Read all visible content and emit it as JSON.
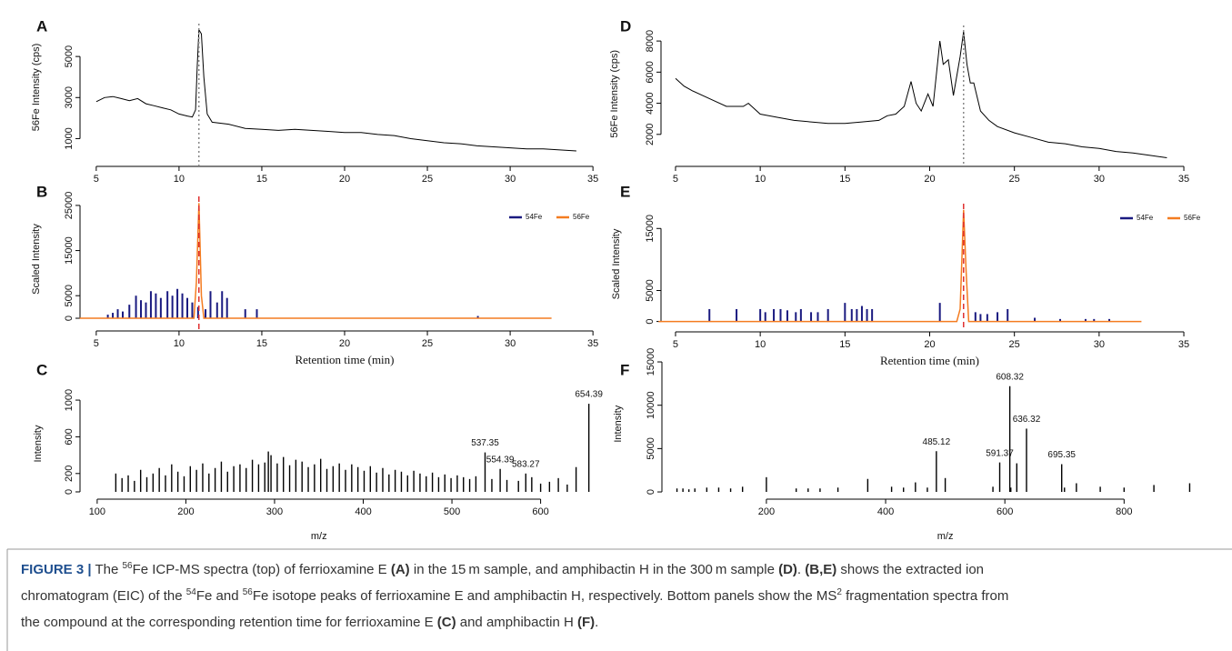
{
  "chart_data": [
    {
      "type": "line",
      "panel": "A",
      "ylabel": "56Fe  Intensity (cps)",
      "color": "#000000",
      "xlim": [
        3.8,
        36.2
      ],
      "ylim": [
        400,
        6600
      ],
      "xticks": [
        5,
        10,
        15,
        20,
        25,
        30,
        35
      ],
      "yticks": [
        1000,
        3000,
        5000
      ],
      "x": [
        5,
        5.5,
        6,
        6.5,
        7,
        7.5,
        8,
        8.5,
        9,
        9.5,
        10,
        10.5,
        10.8,
        11,
        11.1,
        11.2,
        11.35,
        11.5,
        11.7,
        12,
        13,
        14,
        15,
        16,
        17,
        18,
        19,
        20,
        21,
        22,
        23,
        24,
        25,
        26,
        27,
        28,
        29,
        30,
        31,
        32,
        33,
        34
      ],
      "values": [
        2800,
        3000,
        3050,
        2950,
        2850,
        2950,
        2700,
        2600,
        2500,
        2400,
        2200,
        2100,
        2050,
        2400,
        4500,
        6300,
        6100,
        4000,
        2200,
        1800,
        1700,
        1500,
        1450,
        1400,
        1450,
        1400,
        1350,
        1300,
        1300,
        1200,
        1150,
        1000,
        900,
        800,
        750,
        650,
        600,
        550,
        500,
        500,
        450,
        400
      ],
      "marker_x": 11.2,
      "marker_color": "#888888",
      "marker_dash": "2,3"
    },
    {
      "type": "line",
      "panel": "B",
      "ylabel": "Scaled Intensity",
      "xlabel": "Retention time (min)",
      "xlim": [
        3.8,
        36.2
      ],
      "ylim": [
        -800,
        27000
      ],
      "xticks": [
        5,
        10,
        15,
        20,
        25,
        30,
        35
      ],
      "yticks": [
        0,
        5000,
        15000,
        25000
      ],
      "legend": "top-right",
      "series": [
        {
          "name": "54Fe",
          "color": "#1a1a80",
          "kind": "spikes",
          "x": [
            5.7,
            6,
            6.3,
            6.6,
            7,
            7.4,
            7.7,
            8,
            8.3,
            8.6,
            8.9,
            9.3,
            9.6,
            9.9,
            10.2,
            10.5,
            10.8,
            11.15,
            11.6,
            11.9,
            12.3,
            12.6,
            12.9,
            14,
            14.7,
            28.05
          ],
          "values": [
            800,
            1200,
            2000,
            1500,
            3000,
            5000,
            4000,
            3500,
            6000,
            5500,
            4500,
            6000,
            5000,
            6500,
            5500,
            4500,
            3500,
            2500,
            2000,
            6000,
            3500,
            6000,
            4500,
            2000,
            2000,
            500
          ]
        },
        {
          "name": "56Fe",
          "color": "#f47c20",
          "kind": "line",
          "x": [
            4,
            10.9,
            11.05,
            11.2,
            11.35,
            11.5,
            32.5
          ],
          "values": [
            0,
            0,
            8000,
            25500,
            5000,
            0,
            0
          ]
        }
      ],
      "marker_x": 11.2,
      "marker_color": "#e03030",
      "marker_dash": "6,4"
    },
    {
      "type": "spectrum",
      "panel": "C",
      "ylabel": "Intensity",
      "xlabel": "m/z",
      "color": "#000000",
      "xlim": [
        95,
        665
      ],
      "ylim": [
        -20,
        1070
      ],
      "xticks": [
        100,
        200,
        300,
        400,
        500,
        600
      ],
      "yticks": [
        0,
        200,
        600,
        1000
      ],
      "x": [
        121,
        128,
        135,
        142,
        149,
        156,
        163,
        170,
        177,
        184,
        191,
        198,
        205,
        212,
        219,
        226,
        233,
        240,
        247,
        254,
        261,
        268,
        275,
        282,
        289,
        293,
        296,
        303,
        310,
        317,
        324,
        331,
        338,
        345,
        352,
        359,
        366,
        373,
        380,
        387,
        394,
        401,
        408,
        415,
        422,
        429,
        436,
        443,
        450,
        457,
        464,
        471,
        478,
        485,
        492,
        499,
        506,
        513,
        520,
        527,
        545,
        562,
        575,
        590,
        600,
        610,
        620,
        630,
        640
      ],
      "values": [
        200,
        150,
        180,
        120,
        240,
        160,
        200,
        260,
        180,
        300,
        220,
        170,
        280,
        240,
        310,
        200,
        260,
        330,
        220,
        280,
        300,
        260,
        350,
        300,
        320,
        440,
        400,
        310,
        380,
        290,
        350,
        330,
        270,
        300,
        360,
        250,
        280,
        310,
        240,
        300,
        270,
        230,
        280,
        210,
        260,
        190,
        240,
        220,
        180,
        230,
        200,
        170,
        210,
        160,
        190,
        150,
        180,
        160,
        140,
        170,
        140,
        130,
        120,
        160,
        90,
        110,
        150,
        80,
        270
      ],
      "labeled_x": [
        537.35,
        554.39,
        583.27,
        654.39
      ],
      "labeled_values": [
        430,
        250,
        200,
        960
      ]
    },
    {
      "type": "line",
      "panel": "D",
      "ylabel": "56Fe  Intensity (cps)",
      "color": "#000000",
      "xlim": [
        3.8,
        36.2
      ],
      "ylim": [
        200,
        9000
      ],
      "xticks": [
        5,
        10,
        15,
        20,
        25,
        30,
        35
      ],
      "yticks": [
        2000,
        4000,
        6000,
        8000
      ],
      "x": [
        5,
        5.5,
        6,
        7,
        8,
        9,
        9.3,
        10,
        11,
        12,
        13,
        14,
        15,
        16,
        17,
        17.5,
        18,
        18.5,
        18.9,
        19.2,
        19.5,
        19.9,
        20.2,
        20.6,
        20.8,
        21.1,
        21.4,
        21.8,
        22,
        22.2,
        22.4,
        22.6,
        23,
        23.5,
        24,
        25,
        26,
        27,
        28,
        29,
        30,
        31,
        32,
        33,
        34
      ],
      "values": [
        5600,
        5100,
        4800,
        4300,
        3800,
        3800,
        4000,
        3300,
        3100,
        2900,
        2800,
        2700,
        2700,
        2800,
        2900,
        3200,
        3300,
        3800,
        5400,
        4000,
        3500,
        4600,
        3800,
        8000,
        6500,
        6800,
        4500,
        7000,
        8600,
        6500,
        5300,
        5300,
        3500,
        2900,
        2500,
        2100,
        1800,
        1500,
        1400,
        1200,
        1100,
        900,
        800,
        650,
        500
      ],
      "marker_x": 22,
      "marker_color": "#888888",
      "marker_dash": "2,3"
    },
    {
      "type": "line",
      "panel": "E",
      "ylabel": "Scaled Intensity",
      "xlabel": "Retention time (min)",
      "xlim": [
        3.8,
        36.2
      ],
      "ylim": [
        -500,
        19000
      ],
      "xticks": [
        5,
        10,
        15,
        20,
        25,
        30,
        35
      ],
      "yticks": [
        0,
        5000,
        15000
      ],
      "legend": "top-right",
      "series": [
        {
          "name": "54Fe",
          "color": "#1a1a80",
          "kind": "spikes",
          "x": [
            7,
            8.6,
            10,
            10.3,
            10.8,
            11.2,
            11.6,
            12.1,
            12.4,
            13,
            13.4,
            14,
            15,
            15.4,
            15.7,
            16,
            16.3,
            16.6,
            20.6,
            22.7,
            23,
            23.4,
            24,
            24.6,
            26.2,
            27.7,
            29.2,
            29.7,
            30.6
          ],
          "values": [
            2000,
            2000,
            2000,
            1500,
            2000,
            2000,
            1800,
            1500,
            2000,
            1500,
            1500,
            2000,
            3000,
            2000,
            2000,
            2500,
            2000,
            2000,
            3000,
            1500,
            1200,
            1200,
            1500,
            2000,
            600,
            400,
            400,
            400,
            400
          ]
        },
        {
          "name": "56Fe",
          "color": "#f47c20",
          "kind": "line",
          "x": [
            4,
            21.6,
            21.8,
            22,
            22.15,
            22.3,
            32.5
          ],
          "values": [
            0,
            0,
            2000,
            18000,
            8000,
            0,
            0
          ]
        }
      ],
      "marker_x": 22,
      "marker_color": "#e03030",
      "marker_dash": "6,4"
    },
    {
      "type": "spectrum",
      "panel": "F",
      "ylabel": "Intensity",
      "xlabel": "m/z",
      "color": "#000000",
      "xlim": [
        40,
        920
      ],
      "ylim": [
        -300,
        16000
      ],
      "xticks": [
        200,
        400,
        600,
        800
      ],
      "yticks": [
        0,
        5000,
        10000,
        15000
      ],
      "x": [
        50,
        60,
        70,
        80,
        100,
        120,
        140,
        160,
        200,
        250,
        270,
        290,
        320,
        370,
        410,
        430,
        450,
        470,
        500,
        580,
        610,
        620,
        700,
        720,
        760,
        800,
        850,
        910
      ],
      "values": [
        400,
        400,
        300,
        400,
        500,
        500,
        400,
        600,
        1700,
        400,
        400,
        400,
        500,
        1500,
        600,
        500,
        1100,
        500,
        1600,
        600,
        500,
        3300,
        500,
        1000,
        600,
        500,
        800,
        1000
      ],
      "labeled_x": [
        485.12,
        591.37,
        608.32,
        636.32,
        695.35
      ],
      "labeled_values": [
        4700,
        3400,
        12200,
        7300,
        3200
      ]
    }
  ],
  "caption": [
    [
      {
        "text": "FIGURE 3 |",
        "bold": true,
        "lead": true
      },
      {
        "text": " The "
      },
      {
        "text": "56",
        "sup": true
      },
      {
        "text": "Fe ICP-MS spectra (top) of ferrioxamine E "
      },
      {
        "text": "(A)",
        "bold": true
      },
      {
        "text": " in the 15 m sample, and amphibactin H in the 300 m sample "
      },
      {
        "text": "(D)",
        "bold": true
      },
      {
        "text": ". "
      },
      {
        "text": "(B,E)",
        "bold": true
      },
      {
        "text": " shows the extracted ion"
      }
    ],
    [
      {
        "text": "chromatogram (EIC) of the "
      },
      {
        "text": "54",
        "sup": true
      },
      {
        "text": "Fe and "
      },
      {
        "text": "56",
        "sup": true
      },
      {
        "text": "Fe isotope peaks of ferrioxamine E and amphibactin H, respectively. Bottom panels show the MS"
      },
      {
        "text": "2",
        "sup": true
      },
      {
        "text": " fragmentation spectra from"
      }
    ],
    [
      {
        "text": "the compound at the corresponding retention time for ferrioxamine E "
      },
      {
        "text": "(C)",
        "bold": true
      },
      {
        "text": " and amphibactin H "
      },
      {
        "text": "(F)",
        "bold": true
      },
      {
        "text": "."
      }
    ]
  ]
}
